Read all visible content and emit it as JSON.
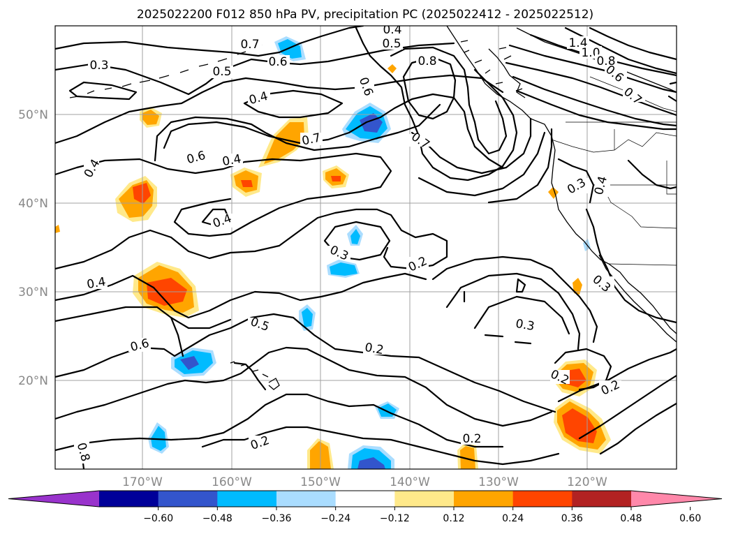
{
  "title": "2025022200 F012 850 hPa PV, precipitation PC (2025022412 - 2025022512)",
  "lat_ticks": [
    "50°N",
    "40°N",
    "30°N",
    "20°N"
  ],
  "lon_ticks": [
    "170°W",
    "160°W",
    "150°W",
    "140°W",
    "130°W",
    "120°W"
  ],
  "contour_labels": [
    "0.4",
    "0.5",
    "0.7",
    "0.6",
    "0.3",
    "0.5",
    "0.8",
    "1.4",
    "1.0",
    "0.8",
    "0.6",
    "0.7",
    "0.6",
    "0.4",
    "0.7",
    "0.7",
    "0.6",
    "0.4",
    "0.4",
    "0.3",
    "0.4",
    "0.4",
    "0.3",
    "0.2",
    "0.4",
    "0.3",
    "0.5",
    "0.3",
    "0.2",
    "0.6",
    "0.2",
    "0.2",
    "0.2",
    "0.2",
    "0.8"
  ],
  "colorbar": {
    "ticks": [
      "−0.60",
      "−0.48",
      "−0.36",
      "−0.24",
      "−0.12",
      "0.12",
      "0.24",
      "0.36",
      "0.48",
      "0.60"
    ],
    "colors": [
      "#9933cc",
      "#000099",
      "#3355cc",
      "#00bbff",
      "#aaddff",
      "#ffffff",
      "#ffe98a",
      "#ffa500",
      "#ff4500",
      "#b22222",
      "#ff88aa"
    ]
  }
}
